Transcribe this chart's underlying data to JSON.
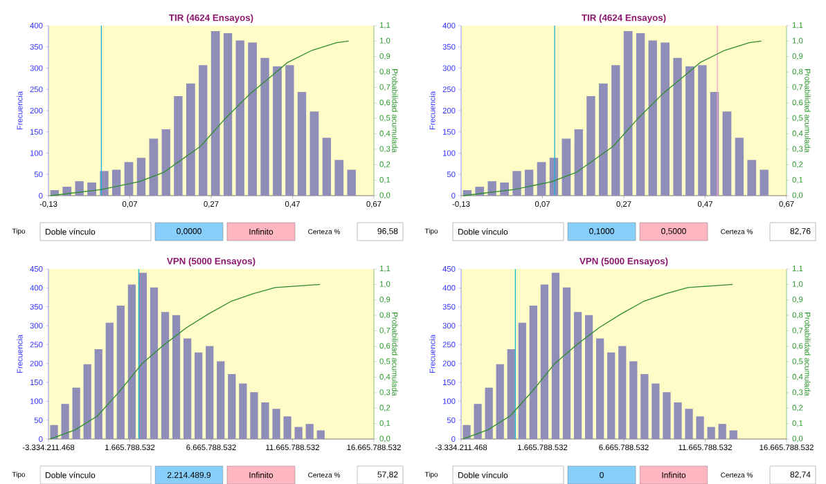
{
  "chart_data": [
    {
      "type": "histogram",
      "title": "TIR (4624 Ensayos)",
      "ylabel": "Frecuencia",
      "y2label": "Probabilidad acumulada",
      "color": "#8e8eb9",
      "bins": [
        -0.13,
        -0.1,
        -0.069,
        -0.039,
        -0.008,
        0.022,
        0.052,
        0.083,
        0.113,
        0.144,
        0.174,
        0.204,
        0.235,
        0.265,
        0.296,
        0.326,
        0.356,
        0.387,
        0.417,
        0.448,
        0.478,
        0.508,
        0.539,
        0.569,
        0.6,
        0.63
      ],
      "values": [
        13,
        21,
        34,
        31,
        58,
        61,
        79,
        89,
        134,
        156,
        234,
        264,
        307,
        387,
        382,
        365,
        360,
        324,
        304,
        307,
        244,
        198,
        136,
        84,
        61
      ],
      "xlim": [
        -0.13,
        0.67
      ],
      "xticks": [
        {
          "value": -0.13,
          "label": "-0,13"
        },
        {
          "value": 0.07,
          "label": "0,07"
        },
        {
          "value": 0.27,
          "label": "0,27"
        },
        {
          "value": 0.47,
          "label": "0,47"
        },
        {
          "value": 0.67,
          "label": "0,67"
        }
      ],
      "ylim": [
        0,
        400
      ],
      "yticks": [
        0,
        50,
        100,
        150,
        200,
        250,
        300,
        350,
        400
      ],
      "y2lim": [
        0,
        1.1
      ],
      "y2ticks": [
        {
          "value": 0,
          "label": "0,0"
        },
        {
          "value": 0.1,
          "label": "0,1"
        },
        {
          "value": 0.2,
          "label": "0,2"
        },
        {
          "value": 0.3,
          "label": "0,3"
        },
        {
          "value": 0.4,
          "label": "0,4"
        },
        {
          "value": 0.5,
          "label": "0,5"
        },
        {
          "value": 0.6,
          "label": "0,6"
        },
        {
          "value": 0.7,
          "label": "0,7"
        },
        {
          "value": 0.8,
          "label": "0,8"
        },
        {
          "value": 0.9,
          "label": "0,9"
        },
        {
          "value": 1.0,
          "label": "1,0"
        },
        {
          "value": 1.1,
          "label": "1,1"
        }
      ],
      "series": [
        {
          "type": "line",
          "axis": "y2",
          "color": "#2e8b2e",
          "x": [
            -0.125,
            0.0,
            0.092,
            0.153,
            0.244,
            0.305,
            0.366,
            0.426,
            0.457,
            0.518,
            0.579,
            0.608
          ],
          "values": [
            0,
            0.04,
            0.09,
            0.15,
            0.32,
            0.5,
            0.66,
            0.79,
            0.86,
            0.94,
            0.99,
            1.0
          ]
        }
      ],
      "ref_lines": [
        {
          "axis": "x",
          "value": 0,
          "color": "#19b5d8"
        }
      ],
      "annotations": [
        "Tipo",
        "Doble vínculo",
        "0,0000",
        "Infinito",
        "Certeza %",
        "96,58"
      ]
    },
    {
      "type": "histogram",
      "title": "TIR (4624 Ensayos)",
      "ylabel": "Frecuencia",
      "y2label": "Probabilidad acumulada",
      "color": "#8e8eb9",
      "bins": [
        -0.13,
        -0.1,
        -0.069,
        -0.039,
        -0.008,
        0.022,
        0.052,
        0.083,
        0.113,
        0.144,
        0.174,
        0.204,
        0.235,
        0.265,
        0.296,
        0.326,
        0.356,
        0.387,
        0.417,
        0.448,
        0.478,
        0.508,
        0.539,
        0.569,
        0.6,
        0.63
      ],
      "values": [
        13,
        21,
        34,
        31,
        58,
        61,
        79,
        89,
        134,
        156,
        234,
        264,
        307,
        387,
        382,
        365,
        360,
        324,
        304,
        307,
        244,
        198,
        136,
        84,
        61
      ],
      "xlim": [
        -0.13,
        0.67
      ],
      "xticks": [
        {
          "value": -0.13,
          "label": "-0,13"
        },
        {
          "value": 0.07,
          "label": "0,07"
        },
        {
          "value": 0.27,
          "label": "0,27"
        },
        {
          "value": 0.47,
          "label": "0,47"
        },
        {
          "value": 0.67,
          "label": "0,67"
        }
      ],
      "ylim": [
        0,
        400
      ],
      "yticks": [
        0,
        50,
        100,
        150,
        200,
        250,
        300,
        350,
        400
      ],
      "y2lim": [
        0,
        1.1
      ],
      "y2ticks": [
        {
          "value": 0,
          "label": "0,0"
        },
        {
          "value": 0.1,
          "label": "0,1"
        },
        {
          "value": 0.2,
          "label": "0,2"
        },
        {
          "value": 0.3,
          "label": "0,3"
        },
        {
          "value": 0.4,
          "label": "0,4"
        },
        {
          "value": 0.5,
          "label": "0,5"
        },
        {
          "value": 0.6,
          "label": "0,6"
        },
        {
          "value": 0.7,
          "label": "0,7"
        },
        {
          "value": 0.8,
          "label": "0,8"
        },
        {
          "value": 0.9,
          "label": "0,9"
        },
        {
          "value": 1.0,
          "label": "1,0"
        },
        {
          "value": 1.1,
          "label": "1,1"
        }
      ],
      "series": [
        {
          "type": "line",
          "axis": "y2",
          "color": "#2e8b2e",
          "x": [
            -0.125,
            0.0,
            0.092,
            0.153,
            0.244,
            0.305,
            0.366,
            0.426,
            0.457,
            0.518,
            0.579,
            0.608
          ],
          "values": [
            0,
            0.04,
            0.09,
            0.15,
            0.32,
            0.5,
            0.66,
            0.79,
            0.86,
            0.94,
            0.99,
            1.0
          ]
        }
      ],
      "ref_lines": [
        {
          "axis": "x",
          "value": 0.1,
          "color": "#19b5d8"
        },
        {
          "axis": "x",
          "value": 0.5,
          "color": "#f4a6c8"
        }
      ],
      "annotations": [
        "Tipo",
        "Doble vínculo",
        "0,1000",
        "0,5000",
        "Certeza %",
        "82,76"
      ]
    },
    {
      "type": "histogram",
      "title": "VPN (5000 Ensayos)",
      "ylabel": "Frecuencia",
      "y2label": "Probabilidad acumulada",
      "color": "#8e8eb9",
      "bins": [
        -3334211000,
        -2651211000,
        -1968211000,
        -1285211000,
        -602211000,
        80789000,
        763789000,
        1446789000,
        2129789000,
        2812789000,
        3495789000,
        4178789000,
        4861789000,
        5544789000,
        6227789000,
        6910789000,
        7593789000,
        8276789000,
        8959789000,
        9642789000,
        10325789000,
        11008789000,
        11691789000,
        12374789000,
        13057789000,
        13740789000
      ],
      "values": [
        37,
        93,
        136,
        198,
        238,
        308,
        353,
        409,
        440,
        401,
        336,
        328,
        266,
        229,
        246,
        206,
        172,
        147,
        124,
        97,
        80,
        60,
        32,
        40,
        23
      ],
      "xlim": [
        -3334211468,
        16665788532
      ],
      "xticks": [
        {
          "value": -3334211468,
          "label": "-3.334.211.468"
        },
        {
          "value": 1665788532,
          "label": "1.665.788.532"
        },
        {
          "value": 6665788532,
          "label": "6.665.788.532"
        },
        {
          "value": 11665788532,
          "label": "11.665.788.532"
        },
        {
          "value": 16665788532,
          "label": "16.665.788.532"
        }
      ],
      "ylim": [
        0,
        450
      ],
      "yticks": [
        0,
        50,
        100,
        150,
        200,
        250,
        300,
        350,
        400,
        450
      ],
      "y2lim": [
        0,
        1.1
      ],
      "y2ticks": [
        {
          "value": 0,
          "label": "0,0"
        },
        {
          "value": 0.1,
          "label": "0,1"
        },
        {
          "value": 0.2,
          "label": "0,2"
        },
        {
          "value": 0.3,
          "label": "0,3"
        },
        {
          "value": 0.4,
          "label": "0,4"
        },
        {
          "value": 0.5,
          "label": "0,5"
        },
        {
          "value": 0.6,
          "label": "0,6"
        },
        {
          "value": 0.7,
          "label": "0,7"
        },
        {
          "value": 0.8,
          "label": "0,8"
        },
        {
          "value": 0.9,
          "label": "0,9"
        },
        {
          "value": 1.0,
          "label": "1,0"
        },
        {
          "value": 1.1,
          "label": "1,1"
        }
      ],
      "series": [
        {
          "type": "line",
          "axis": "y2",
          "color": "#2e8b2e",
          "x": [
            -3220000000,
            -1688000000,
            -319000000,
            1051000000,
            2436000000,
            3773000000,
            5142000000,
            6511000000,
            7880000000,
            9233000000,
            10602000000,
            11971000000,
            13357000000
          ],
          "values": [
            0,
            0.06,
            0.15,
            0.31,
            0.49,
            0.61,
            0.72,
            0.81,
            0.89,
            0.94,
            0.98,
            0.99,
            1.0
          ]
        }
      ],
      "ref_lines": [
        {
          "axis": "x",
          "value": 2214000000,
          "color": "#19b5d8"
        }
      ],
      "annotations": [
        "Tipo",
        "Doble vínculo",
        "2.214.489.9",
        "Infinito",
        "Certeza %",
        "57,82"
      ]
    },
    {
      "type": "histogram",
      "title": "VPN (5000 Ensayos)",
      "ylabel": "Frecuencia",
      "y2label": "Probabilidad acumulada",
      "color": "#8e8eb9",
      "bins": [
        -3334211000,
        -2651211000,
        -1968211000,
        -1285211000,
        -602211000,
        80789000,
        763789000,
        1446789000,
        2129789000,
        2812789000,
        3495789000,
        4178789000,
        4861789000,
        5544789000,
        6227789000,
        6910789000,
        7593789000,
        8276789000,
        8959789000,
        9642789000,
        10325789000,
        11008789000,
        11691789000,
        12374789000,
        13057789000,
        13740789000
      ],
      "values": [
        37,
        93,
        136,
        198,
        238,
        308,
        353,
        409,
        440,
        401,
        336,
        328,
        266,
        229,
        246,
        206,
        172,
        147,
        124,
        97,
        80,
        60,
        32,
        40,
        23
      ],
      "xlim": [
        -3334211468,
        16665788532
      ],
      "xticks": [
        {
          "value": -3334211468,
          "label": "-3.334.211.468"
        },
        {
          "value": 1665788532,
          "label": "1.665.788.532"
        },
        {
          "value": 6665788532,
          "label": "6.665.788.532"
        },
        {
          "value": 11665788532,
          "label": "11.665.788.532"
        },
        {
          "value": 16665788532,
          "label": "16.665.788.532"
        }
      ],
      "ylim": [
        0,
        450
      ],
      "yticks": [
        0,
        50,
        100,
        150,
        200,
        250,
        300,
        350,
        400,
        450
      ],
      "y2lim": [
        0,
        1.1
      ],
      "y2ticks": [
        {
          "value": 0,
          "label": "0,0"
        },
        {
          "value": 0.1,
          "label": "0,1"
        },
        {
          "value": 0.2,
          "label": "0,2"
        },
        {
          "value": 0.3,
          "label": "0,3"
        },
        {
          "value": 0.4,
          "label": "0,4"
        },
        {
          "value": 0.5,
          "label": "0,5"
        },
        {
          "value": 0.6,
          "label": "0,6"
        },
        {
          "value": 0.7,
          "label": "0,7"
        },
        {
          "value": 0.8,
          "label": "0,8"
        },
        {
          "value": 0.9,
          "label": "0,9"
        },
        {
          "value": 1.0,
          "label": "1,0"
        },
        {
          "value": 1.1,
          "label": "1,1"
        }
      ],
      "series": [
        {
          "type": "line",
          "axis": "y2",
          "color": "#2e8b2e",
          "x": [
            -3220000000,
            -1688000000,
            -319000000,
            1051000000,
            2436000000,
            3773000000,
            5142000000,
            6511000000,
            7880000000,
            9233000000,
            10602000000,
            11971000000,
            13357000000
          ],
          "values": [
            0,
            0.06,
            0.15,
            0.31,
            0.49,
            0.61,
            0.72,
            0.81,
            0.89,
            0.94,
            0.98,
            0.99,
            1.0
          ]
        }
      ],
      "ref_lines": [
        {
          "axis": "x",
          "value": 0,
          "color": "#19b5d8"
        }
      ],
      "annotations": [
        "Tipo",
        "Doble vínculo",
        "0",
        "Infinito",
        "Certeza %",
        "82,74"
      ]
    }
  ]
}
